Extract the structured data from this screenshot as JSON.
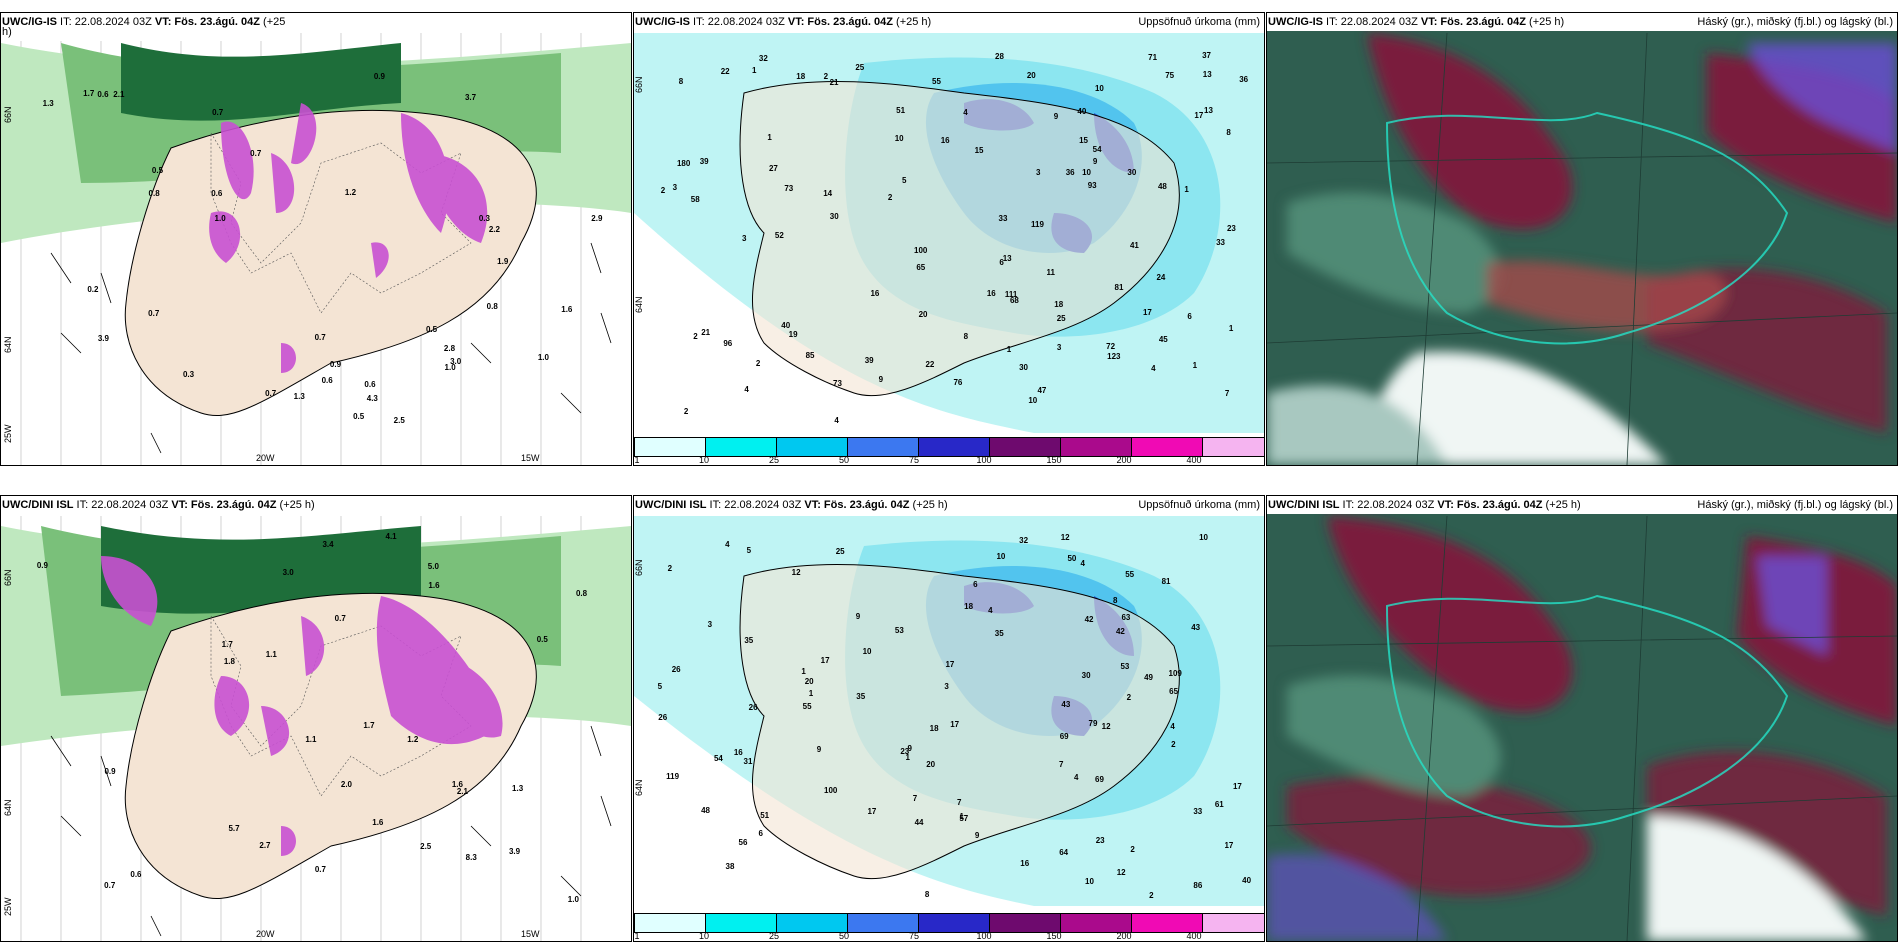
{
  "panels": [
    {
      "id": "top-left",
      "model_prefix": "UWC/IG-IS",
      "run": " IT: 22.08.2024 03Z ",
      "vt_label": "VT: Fös. 23.ágú. 04Z",
      "lead": " (+25",
      "lead_wrap": "h)",
      "right_title": "",
      "labels": {
        "lat_top": "66N",
        "lat_bottom": "64N",
        "lon_left": "25W",
        "lon_mid": "20W",
        "lon_right": "15W"
      }
    },
    {
      "id": "top-middle",
      "model_prefix": "UWC/IG-IS",
      "run": " IT: 22.08.2024 03Z ",
      "vt_label": "VT: Fös. 23.ágú. 04Z",
      "lead": " (+25 h)",
      "right_title": "Uppsöfnuð úrkoma (mm)",
      "labels": {
        "lat_top": "66N",
        "lat_bottom": "64N"
      }
    },
    {
      "id": "top-right",
      "model_prefix": "UWC/IG-IS",
      "run": " IT: 22.08.2024 03Z ",
      "vt_label": "VT: Fös. 23.ágú. 04Z",
      "lead": " (+25 h)",
      "right_title": "Háský (gr.), miðský (fj.bl.) og lágský (bl.)"
    },
    {
      "id": "bottom-left",
      "model_prefix": "UWC/DINI ISL",
      "run": " IT: 22.08.2024 03Z ",
      "vt_label": "VT: Fös. 23.ágú. 04Z",
      "lead": " (+25 h)",
      "right_title": "",
      "labels": {
        "lat_top": "66N",
        "lat_bottom": "64N",
        "lon_left": "25W",
        "lon_mid": "20W",
        "lon_right": "15W"
      }
    },
    {
      "id": "bottom-middle",
      "model_prefix": "UWC/DINI ISL",
      "run": " IT: 22.08.2024 03Z ",
      "vt_label": "VT: Fös. 23.ágú. 04Z",
      "lead": " (+25 h)",
      "right_title": "Uppsöfnuð úrkoma (mm)",
      "labels": {
        "lat_top": "66N",
        "lat_bottom": "64N"
      }
    },
    {
      "id": "bottom-right",
      "model_prefix": "UWC/DINI ISL",
      "run": " IT: 22.08.2024 03Z ",
      "vt_label": "VT: Fös. 23.ágú. 04Z",
      "lead": " (+25 h)",
      "right_title": "Háský (gr.), miðský (fj.bl.) og lágský (bl.)"
    }
  ],
  "precip_scale": {
    "ticks": [
      "1",
      "10",
      "25",
      "50",
      "75",
      "100",
      "150",
      "200",
      "400"
    ],
    "colors": [
      "#e0ffff",
      "#00f0f0",
      "#00c8f0",
      "#3c78f0",
      "#2828c8",
      "#6e0a6e",
      "#aa0a8c",
      "#f00ab4",
      "#f5b4f0"
    ]
  },
  "precip_values_top": [
    "47",
    "21",
    "19",
    "27",
    "30",
    "30",
    "33",
    "30",
    "65",
    "85",
    "96",
    "180",
    "100",
    "111",
    "93",
    "71",
    "58",
    "75",
    "81",
    "48",
    "72",
    "68",
    "73",
    "123",
    "119",
    "54",
    "52",
    "73",
    "76",
    "51",
    "25",
    "37",
    "40",
    "39",
    "25",
    "22",
    "28",
    "39",
    "23",
    "18",
    "55",
    "33",
    "36",
    "45",
    "20",
    "24",
    "16",
    "20",
    "13",
    "13",
    "16",
    "15",
    "14",
    "15",
    "8",
    "7",
    "4",
    "5",
    "4",
    "2",
    "2",
    "10",
    "10",
    "3",
    "2",
    "4",
    "1",
    "1",
    "3",
    "2",
    "1",
    "3",
    "2",
    "4",
    "9",
    "17",
    "41",
    "40",
    "36",
    "21",
    "16",
    "22",
    "9",
    "8",
    "10",
    "13",
    "11",
    "17",
    "32",
    "18",
    "8",
    "10",
    "6",
    "6",
    "1",
    "3",
    "2",
    "1",
    "1",
    "9"
  ],
  "precip_values_bottom": [
    "7",
    "17",
    "49",
    "61",
    "64",
    "63",
    "109",
    "17",
    "17",
    "12",
    "79",
    "69",
    "119",
    "69",
    "100",
    "86",
    "81",
    "54",
    "55",
    "53",
    "20",
    "26",
    "30",
    "50",
    "65",
    "56",
    "35",
    "42",
    "40",
    "31",
    "43",
    "32",
    "26",
    "23",
    "35",
    "38",
    "35",
    "17",
    "12",
    "10",
    "9",
    "9",
    "6",
    "8",
    "5",
    "9",
    "10",
    "17",
    "18",
    "5",
    "7",
    "1",
    "3",
    "2",
    "2",
    "1",
    "4",
    "4",
    "2",
    "1",
    "4",
    "44",
    "18",
    "16",
    "57",
    "48",
    "43",
    "17",
    "7",
    "23",
    "25",
    "26",
    "16",
    "12",
    "10",
    "6",
    "2",
    "1",
    "2",
    "3",
    "4",
    "4",
    "8",
    "9",
    "10",
    "12",
    "20",
    "55",
    "53",
    "51",
    "33",
    "42"
  ],
  "wind_values_top": [
    "0.7",
    "0.9",
    "1.2",
    "1.3",
    "2.9",
    "3.9",
    "0.6",
    "0.2",
    "0.3",
    "0.5",
    "0.7",
    "1.0",
    "1.3",
    "2.5",
    "3.7",
    "4.3",
    "2.8",
    "3.0",
    "1.6",
    "2.2",
    "2.1",
    "1.9",
    "0.8",
    "1.0",
    "0.6",
    "0.3",
    "0.9",
    "0.5",
    "0.7",
    "0.6",
    "1.7",
    "0.5",
    "0.8",
    "0.7",
    "1.0",
    "0.7",
    "0.6"
  ],
  "wind_values_bottom": [
    "0.7",
    "1.3",
    "1.7",
    "2.0",
    "3.0",
    "4.1",
    "3.9",
    "5.0",
    "8.3",
    "5.7",
    "1.0",
    "1.8",
    "2.7",
    "3.4",
    "2.5",
    "1.7",
    "1.6",
    "0.9",
    "1.1",
    "0.8",
    "0.9",
    "0.6",
    "0.7",
    "1.2",
    "2.1",
    "1.6",
    "1.1",
    "0.7",
    "0.5",
    "1.6"
  ]
}
